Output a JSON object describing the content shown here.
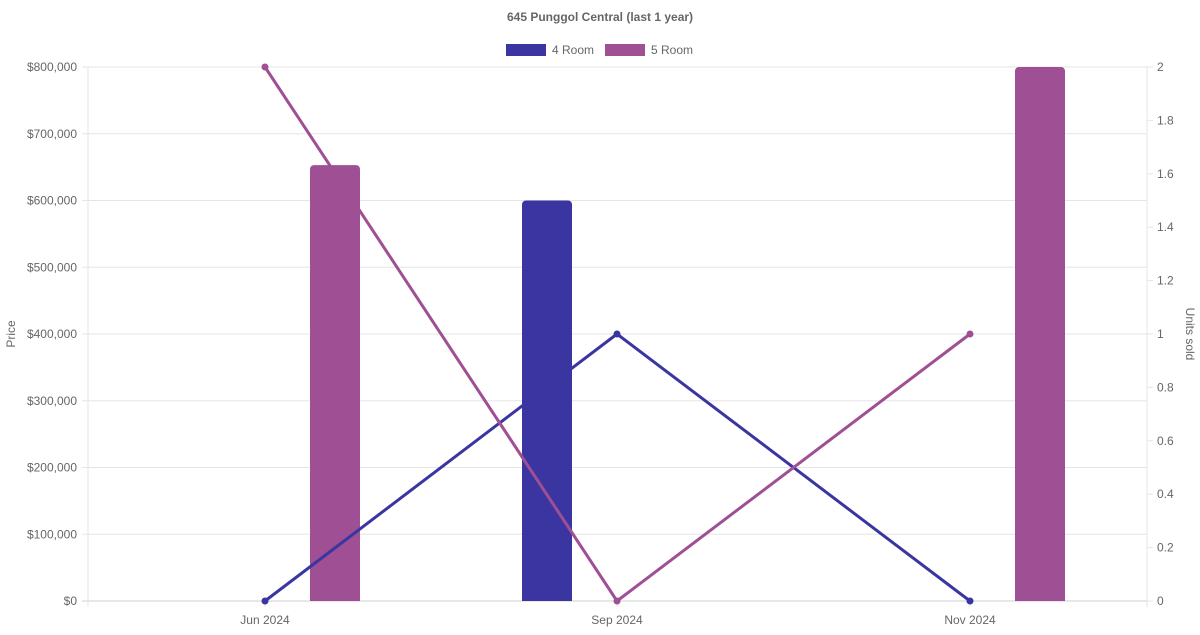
{
  "chart_data": {
    "type": "bar",
    "title": "645 Punggol Central (last 1 year)",
    "categories": [
      "Jun 2024",
      "Sep 2024",
      "Nov 2024"
    ],
    "y_left": {
      "label": "Price",
      "min": 0,
      "max": 800000,
      "step": 100000,
      "ticks": [
        "$0",
        "$100,000",
        "$200,000",
        "$300,000",
        "$400,000",
        "$500,000",
        "$600,000",
        "$700,000",
        "$800,000"
      ]
    },
    "y_right": {
      "label": "Units sold",
      "min": 0,
      "max": 2,
      "step": 0.2,
      "ticks": [
        "0",
        "0.2",
        "0.4",
        "0.6",
        "0.8",
        "1",
        "1.2",
        "1.4",
        "1.6",
        "1.8",
        "2"
      ]
    },
    "legend_position": "top",
    "grid": true,
    "series": [
      {
        "name": "4 Room",
        "color": "#3a35a0",
        "bar_values": [
          null,
          600000,
          null
        ],
        "units_sold": [
          0,
          1,
          0
        ]
      },
      {
        "name": "5 Room",
        "color": "#9f4f93",
        "bar_values": [
          653000,
          null,
          800000
        ],
        "units_sold": [
          2,
          0,
          1
        ]
      }
    ]
  }
}
